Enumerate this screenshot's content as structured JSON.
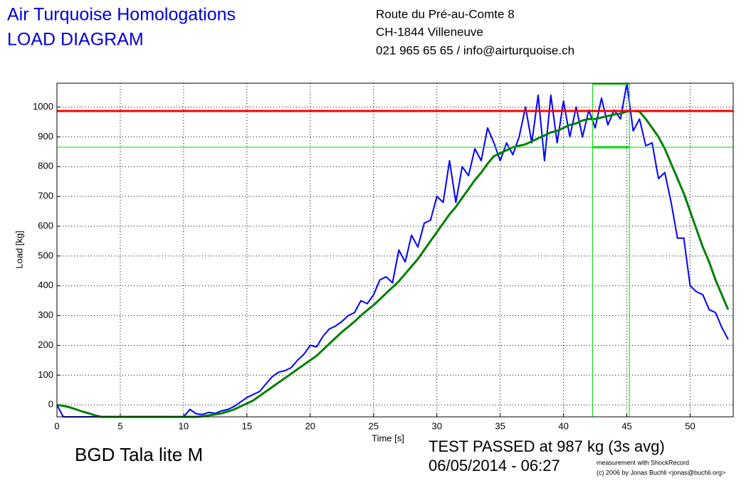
{
  "header": {
    "title": [
      "Air Turquoise Homologations",
      "LOAD DIAGRAM"
    ],
    "address": [
      "Route du Pré-au-Comte 8",
      "CH-1844 Villeneuve",
      "021 965 65 65 / info@airturquoise.ch"
    ]
  },
  "chart_data": {
    "type": "line",
    "x_label": "Time [s]",
    "y_label": "Load [kg]",
    "xlim": [
      0,
      53.4
    ],
    "ylim": [
      -40,
      1080
    ],
    "xticks": [
      0,
      5,
      10,
      15,
      20,
      25,
      30,
      35,
      40,
      45,
      50
    ],
    "yticks": [
      0,
      100,
      200,
      300,
      400,
      500,
      600,
      700,
      800,
      900,
      1000
    ],
    "grid": true,
    "x": [
      0,
      0.5,
      1,
      1.5,
      2,
      2.5,
      3,
      3.5,
      4,
      4.5,
      5,
      5.5,
      6,
      6.5,
      7,
      7.5,
      8,
      8.5,
      9,
      9.5,
      10,
      10.5,
      11,
      11.5,
      12,
      12.5,
      13,
      13.5,
      14,
      14.5,
      15,
      15.5,
      16,
      16.5,
      17,
      17.5,
      18,
      18.5,
      19,
      19.5,
      20,
      20.5,
      21,
      21.5,
      22,
      22.5,
      23,
      23.5,
      24,
      24.5,
      25,
      25.5,
      26,
      26.5,
      27,
      27.5,
      28,
      28.5,
      29,
      29.5,
      30,
      30.5,
      31,
      31.5,
      32,
      32.5,
      33,
      33.5,
      34,
      34.5,
      35,
      35.5,
      36,
      36.5,
      37,
      37.5,
      38,
      38.5,
      39,
      39.5,
      40,
      40.5,
      41,
      41.5,
      42,
      42.5,
      43,
      43.5,
      44,
      44.5,
      45,
      45.5,
      46,
      46.5,
      47,
      47.5,
      48,
      48.5,
      49,
      49.5,
      50,
      50.5,
      51,
      51.5,
      52,
      52.5,
      53
    ],
    "series": [
      {
        "color": "#0000ff",
        "values": [
          0,
          -40,
          -40,
          -40,
          -40,
          -40,
          -40,
          -40,
          -40,
          -40,
          -40,
          -40,
          -40,
          -40,
          -40,
          -40,
          -40,
          -40,
          -40,
          -40,
          -40,
          -15,
          -30,
          -32,
          -25,
          -28,
          -20,
          -15,
          -5,
          10,
          25,
          35,
          45,
          70,
          95,
          110,
          115,
          125,
          150,
          170,
          200,
          195,
          230,
          255,
          265,
          280,
          300,
          310,
          350,
          340,
          370,
          420,
          430,
          410,
          520,
          480,
          570,
          530,
          610,
          620,
          700,
          680,
          820,
          680,
          800,
          770,
          860,
          820,
          930,
          880,
          820,
          880,
          840,
          900,
          1000,
          880,
          1040,
          820,
          1040,
          880,
          1020,
          900,
          1000,
          900,
          990,
          930,
          1030,
          940,
          990,
          960,
          1080,
          920,
          960,
          870,
          880,
          760,
          780,
          680,
          560,
          560,
          400,
          380,
          370,
          320,
          310,
          260,
          220
        ]
      },
      {
        "color": "#008000",
        "values": [
          0,
          -3,
          -8,
          -15,
          -22,
          -28,
          -35,
          -40,
          -40,
          -40,
          -40,
          -40,
          -40,
          -40,
          -40,
          -40,
          -40,
          -40,
          -40,
          -40,
          -40,
          -40,
          -40,
          -38,
          -35,
          -32,
          -28,
          -22,
          -15,
          -5,
          5,
          15,
          30,
          45,
          60,
          75,
          90,
          105,
          120,
          135,
          150,
          165,
          185,
          205,
          225,
          245,
          262,
          280,
          300,
          318,
          335,
          355,
          375,
          395,
          415,
          440,
          465,
          490,
          520,
          550,
          580,
          610,
          640,
          665,
          695,
          725,
          755,
          780,
          810,
          835,
          845,
          855,
          865,
          870,
          875,
          885,
          895,
          905,
          915,
          920,
          930,
          940,
          945,
          955,
          960,
          960,
          965,
          970,
          975,
          978,
          985,
          987,
          985,
          960,
          930,
          900,
          860,
          810,
          760,
          710,
          650,
          590,
          530,
          480,
          420,
          370,
          320
        ]
      }
    ],
    "hlines": [
      {
        "value": 987,
        "color": "#ff0000"
      },
      {
        "value": 865,
        "color": "#00dd00"
      }
    ],
    "vlines": [
      {
        "value": 42.3,
        "color": "#00dd00"
      },
      {
        "value": 45.2,
        "color": "#00dd00"
      }
    ],
    "name": "BGD Tala lite M",
    "result": "TEST PASSED at 987 kg (3s avg)",
    "date": "06/05/2014 - 06:27",
    "credits": [
      "measurement with ShockRecord",
      "(c) 2006 by Jonas Buchli <jonas@buchli.org>"
    ]
  }
}
